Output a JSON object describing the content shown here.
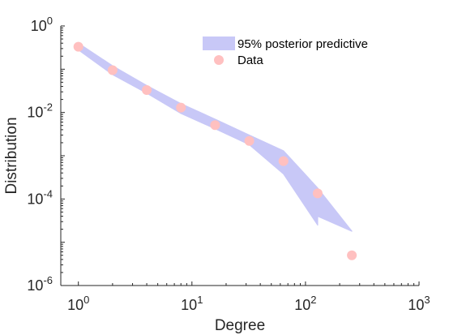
{
  "chart_data": {
    "type": "scatter",
    "xscale": "log",
    "yscale": "log",
    "xlim": [
      0.7,
      1000
    ],
    "ylim": [
      1e-06,
      1
    ],
    "xlabel": "Degree",
    "ylabel": "Distribution",
    "grid": false,
    "legend_position": "top-right",
    "xticks": [
      {
        "value": 1,
        "base": "10",
        "exp": "0"
      },
      {
        "value": 10,
        "base": "10",
        "exp": "1"
      },
      {
        "value": 100,
        "base": "10",
        "exp": "2"
      },
      {
        "value": 1000,
        "base": "10",
        "exp": "3"
      }
    ],
    "yticks": [
      {
        "value": 1e-06,
        "base": "10",
        "exp": "-6"
      },
      {
        "value": 0.0001,
        "base": "10",
        "exp": "-4"
      },
      {
        "value": 0.01,
        "base": "10",
        "exp": "-2"
      },
      {
        "value": 1,
        "base": "10",
        "exp": "0"
      }
    ],
    "series": [
      {
        "name": "95% posterior predictive",
        "kind": "band",
        "color": "#c8c8f7",
        "x": [
          1,
          2,
          4,
          8,
          16,
          32,
          64,
          128,
          128,
          256
        ],
        "lower": [
          0.28,
          0.075,
          0.028,
          0.0095,
          0.0042,
          0.0018,
          0.00038,
          2.5e-05,
          4e-05,
          1.8e-05
        ],
        "upper": [
          0.4,
          0.12,
          0.042,
          0.016,
          0.007,
          0.003,
          0.0013,
          0.00018,
          0.00018,
          1.8e-05
        ]
      },
      {
        "name": "Data",
        "kind": "points",
        "color": "#ffc0c0",
        "x": [
          1,
          2,
          4,
          8,
          16,
          32,
          64,
          128,
          256
        ],
        "y": [
          0.33,
          0.095,
          0.033,
          0.013,
          0.0051,
          0.0022,
          0.00075,
          0.000135,
          5e-06
        ]
      }
    ]
  }
}
